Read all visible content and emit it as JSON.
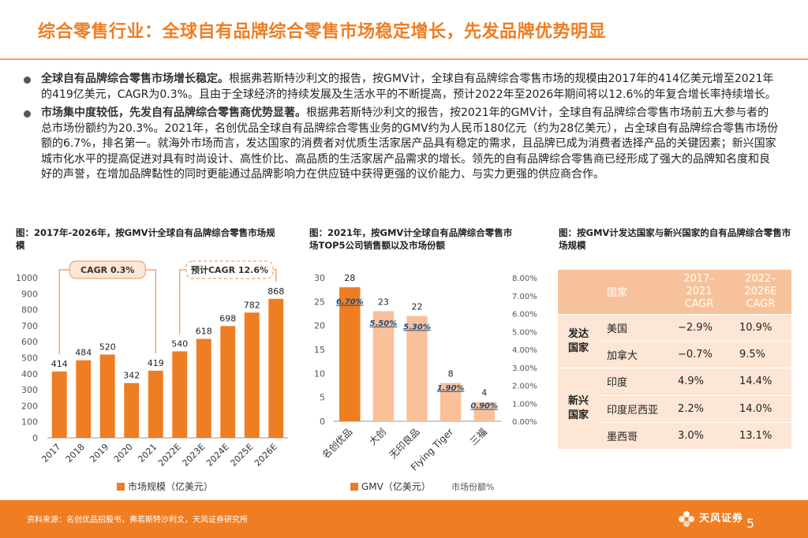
{
  "title": "综合零售行业：全球自有品牌综合零售市场稳定增长，先发品牌优势明显",
  "bullets": [
    {
      "lead": "全球自有品牌综合零售市场增长稳定。",
      "text": "根据弗若斯特沙利文的报告，按GMV计，全球自有品牌综合零售市场的规模由2017年的414亿美元增至2021年的419亿美元，CAGR为0.3%。且由于全球经济的持续发展及生活水平的不断提高，预计2022年至2026年期间将以12.6%的年复合增长率持续增长。"
    },
    {
      "lead": "市场集中度较低，先发自有品牌综合零售商优势显著。",
      "text": "根据弗若斯特沙利文的报告，按2021年的GMV计，全球自有品牌综合零售市场前五大参与者的总市场份额约为20.3%。2021年，名创优品全球自有品牌综合零售业务的GMV约为人民币180亿元（约为28亿美元），占全球自有品牌综合零售市场份额的6.7%，排名第一。就海外市场而言，发达国家的消费者对优质生活家居产品具有稳定的需求，且品牌已成为消费者选择产品的关键因素；新兴国家城市化水平的提高促进对具有时尚设计、高性价比、高品质的生活家居产品需求的增长。领先的自有品牌综合零售商已经形成了强大的品牌知名度和良好的声誉，在增加品牌黏性的同时更能通过品牌影响力在供应链中获得更强的议价能力、与实力更强的供应商合作。"
    }
  ],
  "captions": {
    "chart1": "图：2017年-2026年，按GMV计全球自有品牌综合零售市场规模",
    "chart2": "图：2021年，按GMV计全球自有品牌综合零售市场TOP5公司销售额以及市场份额",
    "table": "图：按GMV计发达国家与新兴国家的自有品牌综合零售市场规模"
  },
  "chart_data": [
    {
      "type": "bar",
      "title": "2017年-2026年，按GMV计全球自有品牌综合零售市场规模",
      "categories": [
        "2017",
        "2018",
        "2019",
        "2020",
        "2021",
        "2022E",
        "2023E",
        "2024E",
        "2025E",
        "2026E"
      ],
      "values": [
        414,
        484,
        520,
        342,
        419,
        540,
        618,
        698,
        782,
        868
      ],
      "ylim": [
        0,
        1000
      ],
      "yticks": [
        "0",
        "100",
        "200",
        "300",
        "400",
        "500",
        "600",
        "700",
        "800",
        "900",
        "1000"
      ],
      "legend": "市场规模（亿美元）",
      "annotations": [
        "CAGR 0.3%",
        "预计CAGR 12.6%"
      ],
      "color": "#ef7d22"
    },
    {
      "type": "bar",
      "title": "2021年，按GMV计全球自有品牌综合零售市场TOP5公司销售额以及市场份额",
      "categories": [
        "名创优品",
        "大创",
        "无印良品",
        "Flying Tiger",
        "三福"
      ],
      "series": [
        {
          "name": "GMV（亿美元）",
          "values": [
            28,
            23,
            22,
            8,
            4
          ],
          "labels": [
            "28",
            "23",
            "22",
            "8",
            "4"
          ]
        },
        {
          "name": "市场份额%",
          "values": [
            6.7,
            5.5,
            5.3,
            1.9,
            0.9
          ],
          "labels": [
            "6.70%",
            "5.50%",
            "5.30%",
            "1.90%",
            "0.90%"
          ]
        }
      ],
      "ylim": [
        0,
        30
      ],
      "y2lim": [
        0,
        8
      ],
      "yticks": [
        "0",
        "5",
        "10",
        "15",
        "20",
        "25",
        "30"
      ],
      "y2ticks": [
        "0.00%",
        "1.00%",
        "2.00%",
        "3.00%",
        "4.00%",
        "5.00%",
        "6.00%",
        "7.00%",
        "8.00%"
      ],
      "legend": [
        "GMV（亿美元）",
        "市场份额%"
      ],
      "colors": [
        "#ef7d22",
        "#f9c09a"
      ]
    },
    {
      "type": "table",
      "title": "按GMV计发达国家与新兴国家的自有品牌综合零售市场规模",
      "headers": [
        "国家",
        "2017–2021 CAGR",
        "2022–2026E CAGR"
      ],
      "rows": [
        {
          "group": "发达国家",
          "country": "美国",
          "cagr1": "−2.9%",
          "cagr2": "10.9%"
        },
        {
          "group": "发达国家",
          "country": "加拿大",
          "cagr1": "−0.7%",
          "cagr2": "9.5%"
        },
        {
          "group": "新兴国家",
          "country": "印度",
          "cagr1": "4.9%",
          "cagr2": "14.4%"
        },
        {
          "group": "新兴国家",
          "country": "印度尼西亚",
          "cagr1": "2.2%",
          "cagr2": "14.0%"
        },
        {
          "group": "新兴国家",
          "country": "墨西哥",
          "cagr1": "3.0%",
          "cagr2": "13.1%"
        }
      ]
    }
  ],
  "table": {
    "h_country": "国家",
    "h_cagr1": [
      "2017–",
      "2021",
      "CAGR"
    ],
    "h_cagr2": [
      "2022–",
      "2026E",
      "CAGR"
    ],
    "group_dev": [
      "发达",
      "国家"
    ],
    "group_emg": [
      "新兴",
      "国家"
    ],
    "rows": [
      {
        "country": "美国",
        "cagr1": "−2.9%",
        "cagr2": "10.9%"
      },
      {
        "country": "加拿大",
        "cagr1": "−0.7%",
        "cagr2": "9.5%"
      },
      {
        "country": "印度",
        "cagr1": "4.9%",
        "cagr2": "14.4%"
      },
      {
        "country": "印度尼西亚",
        "cagr1": "2.2%",
        "cagr2": "14.0%"
      },
      {
        "country": "墨西哥",
        "cagr1": "3.0%",
        "cagr2": "13.1%"
      }
    ]
  },
  "footer": {
    "source": "资料来源：名创优品招股书，弗若斯特沙利文，天风证券研究所",
    "logo_text": "天风证券",
    "page_number": "5"
  },
  "colors": {
    "accent": "#ef7d22",
    "light": "#f9c09a",
    "table_header": "#f7c29b",
    "table_body": "#fde6d5"
  }
}
